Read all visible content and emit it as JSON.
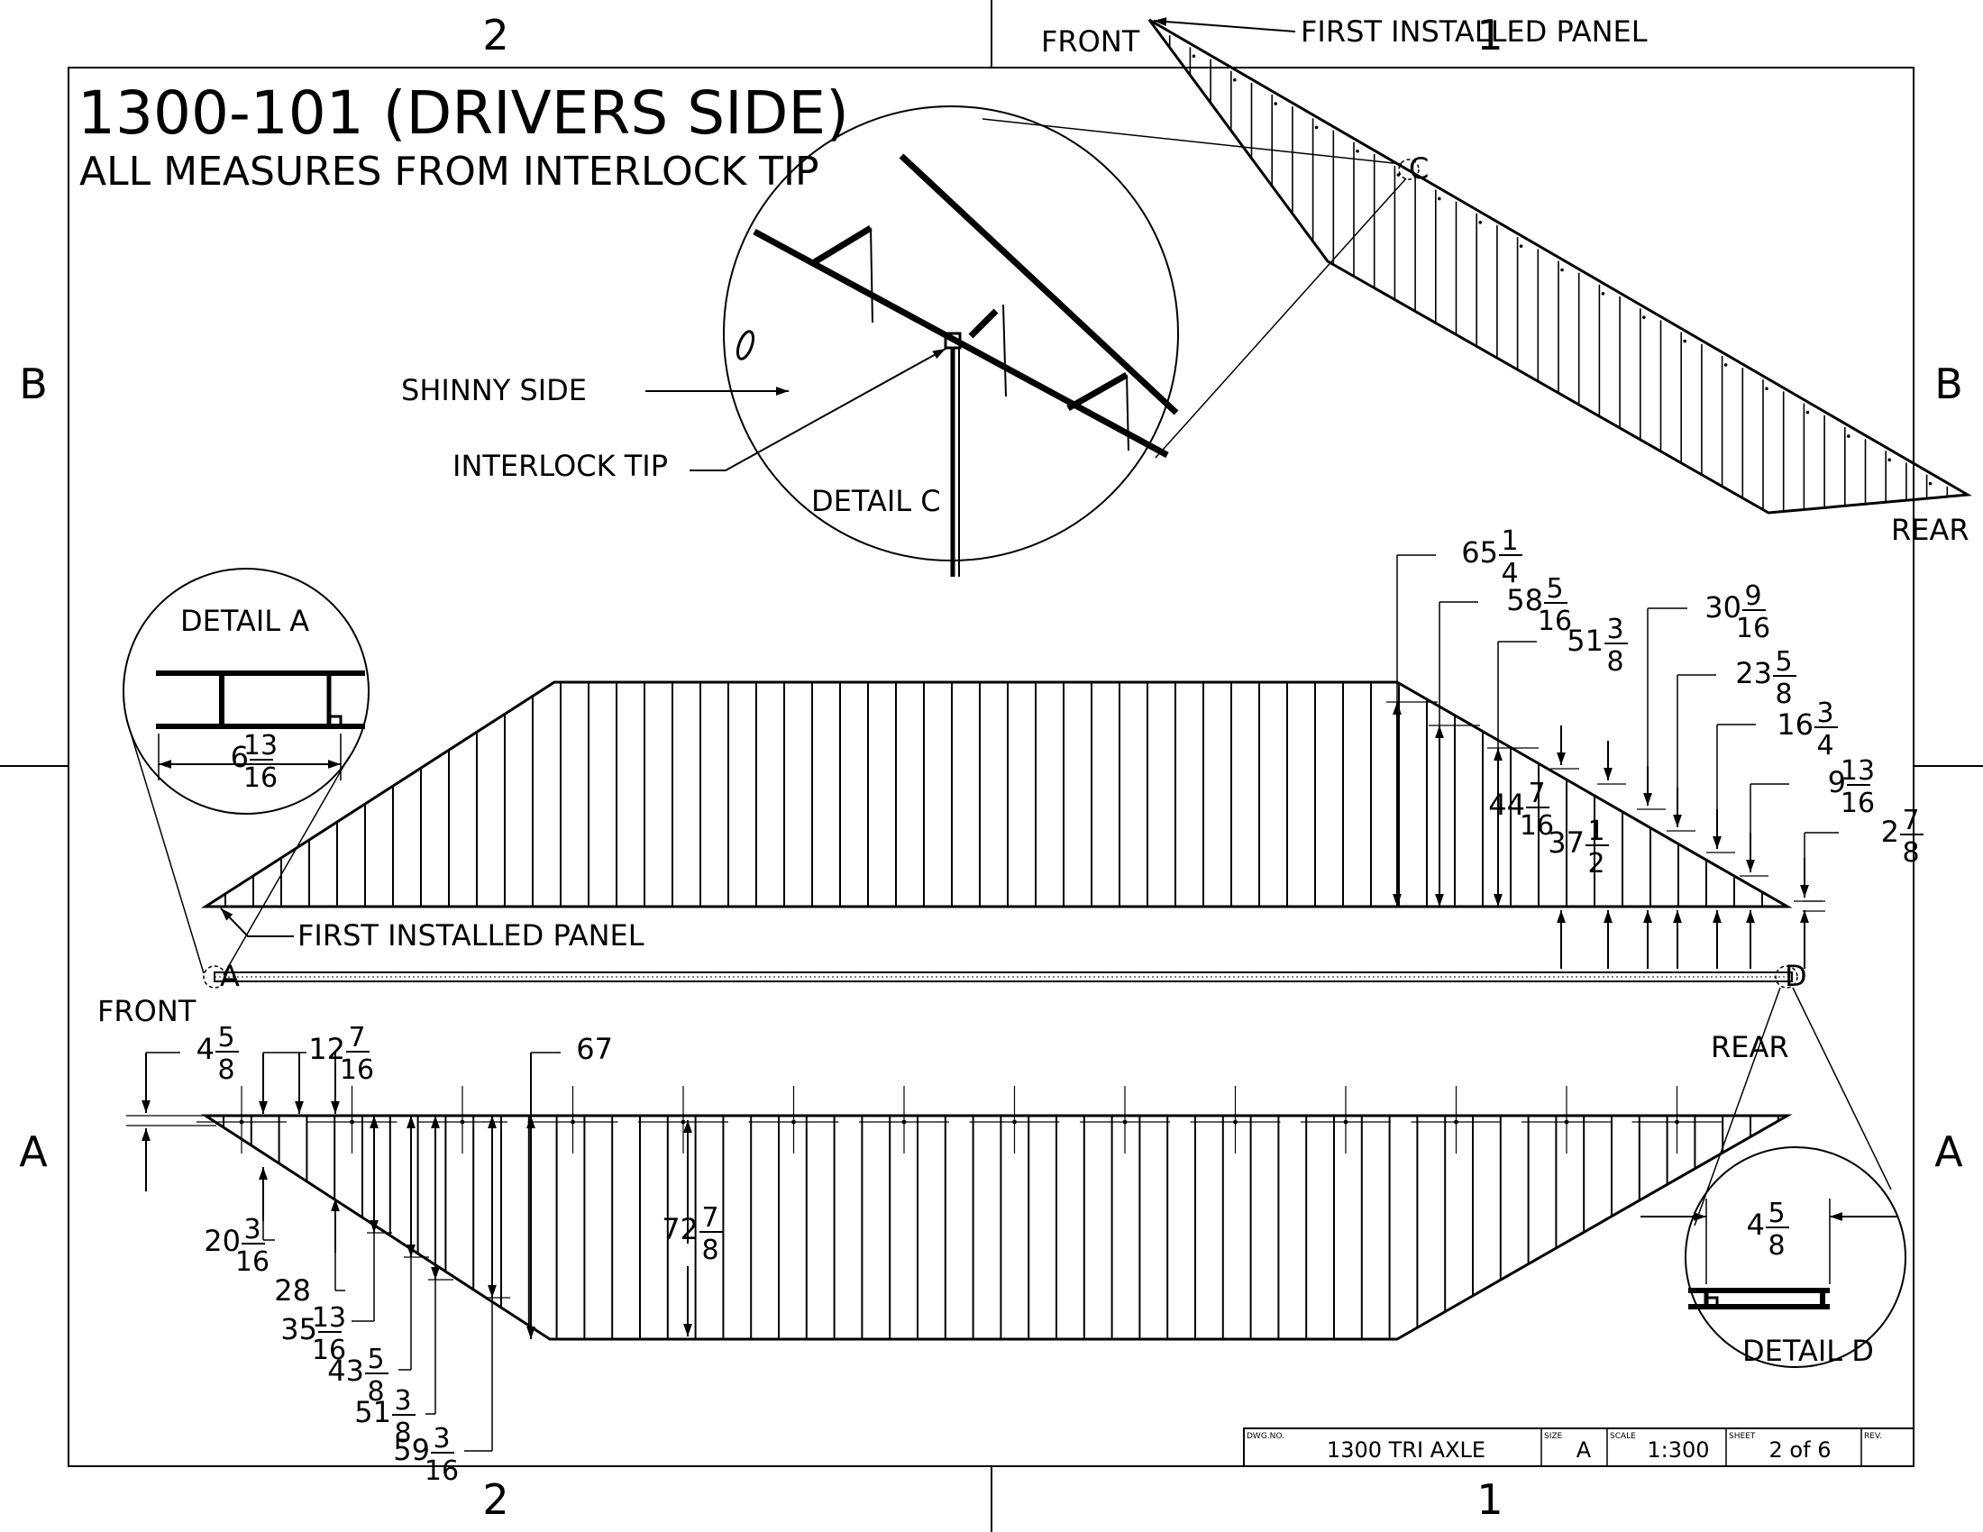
{
  "title": "1300-101 (DRIVERS SIDE)",
  "subtitle": "ALL MEASURES FROM INTERLOCK TIP",
  "zones": {
    "top": [
      "2",
      "1"
    ],
    "bottom": [
      "2",
      "1"
    ],
    "left": [
      "B",
      "A"
    ],
    "right": [
      "B",
      "A"
    ]
  },
  "iso_view": {
    "front_label": "FRONT",
    "first_panel_label": "FIRST INSTALLED PANEL",
    "detail_marker": "C",
    "rear_label": "REAR"
  },
  "detail_c": {
    "title": "DETAIL C",
    "shinny_side": "SHINNY SIDE",
    "interlock_tip": "INTERLOCK TIP"
  },
  "detail_a": {
    "title": "DETAIL A",
    "dim": {
      "whole": "6",
      "num": "13",
      "den": "16"
    }
  },
  "detail_d": {
    "title": "DETAIL D",
    "dim": {
      "whole": "4",
      "num": "5",
      "den": "8"
    }
  },
  "top_view": {
    "first_panel_label": "FIRST INSTALLED PANEL",
    "front_label": "FRONT",
    "rear_label": "REAR",
    "marker_a": "A",
    "marker_d": "D",
    "dims": [
      {
        "whole": "65",
        "num": "1",
        "den": "4"
      },
      {
        "whole": "58",
        "num": "5",
        "den": "16"
      },
      {
        "whole": "51",
        "num": "3",
        "den": "8"
      },
      {
        "whole": "44",
        "num": "7",
        "den": "16"
      },
      {
        "whole": "37",
        "num": "1",
        "den": "2"
      },
      {
        "whole": "30",
        "num": "9",
        "den": "16"
      },
      {
        "whole": "23",
        "num": "5",
        "den": "8"
      },
      {
        "whole": "16",
        "num": "3",
        "den": "4"
      },
      {
        "whole": "9",
        "num": "13",
        "den": "16"
      },
      {
        "whole": "2",
        "num": "7",
        "den": "8"
      }
    ]
  },
  "bottom_view": {
    "dims": [
      {
        "whole": "4",
        "num": "5",
        "den": "8"
      },
      {
        "whole": "12",
        "num": "7",
        "den": "16"
      },
      {
        "whole": "67",
        "num": "",
        "den": ""
      },
      {
        "whole": "20",
        "num": "3",
        "den": "16"
      },
      {
        "whole": "28",
        "num": "",
        "den": ""
      },
      {
        "whole": "35",
        "num": "13",
        "den": "16"
      },
      {
        "whole": "43",
        "num": "5",
        "den": "8"
      },
      {
        "whole": "51",
        "num": "3",
        "den": "8"
      },
      {
        "whole": "59",
        "num": "3",
        "den": "16"
      },
      {
        "whole": "72",
        "num": "7",
        "den": "8"
      }
    ]
  },
  "title_block": {
    "dwg_no_label": "DWG.NO.",
    "dwg_no": "1300 TRI AXLE",
    "size_label": "SIZE",
    "size": "A",
    "scale_label": "SCALE",
    "scale": "1:300",
    "sheet_label": "SHEET",
    "sheet": "2 of 6",
    "rev_label": "REV."
  }
}
